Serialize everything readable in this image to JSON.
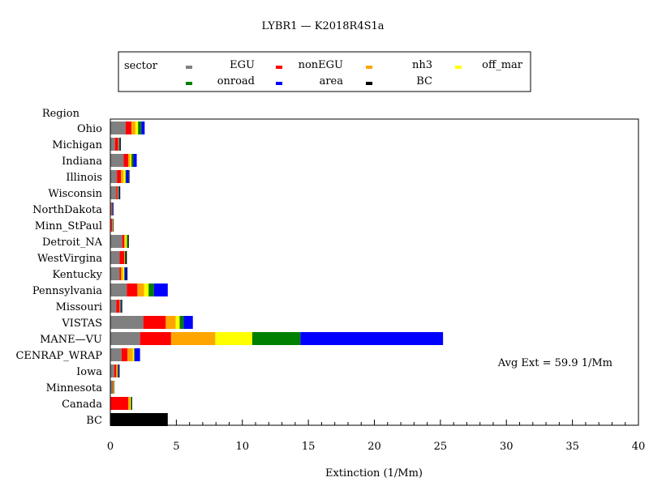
{
  "chart_data": {
    "type": "bar",
    "orientation": "horizontal",
    "stacked": true,
    "title": "LYBR1 — K2018R4S1a",
    "xlabel": "Extinction (1/Mm)",
    "ylabel": "Region",
    "xlim": [
      0,
      40
    ],
    "xticks": [
      0,
      5,
      10,
      15,
      20,
      25,
      30,
      35,
      40
    ],
    "legend_title": "sector",
    "annotation": "Avg Ext =  59.9 1/Mm",
    "categories": [
      "Ohio",
      "Michigan",
      "Indiana",
      "Illinois",
      "Wisconsin",
      "NorthDakota",
      "Minn_StPaul",
      "Detroit_NA",
      "WestVirgina",
      "Kentucky",
      "Pennsylvania",
      "Missouri",
      "VISTAS",
      "MANE—VU",
      "CENRAP_WRAP",
      "Iowa",
      "Minnesota",
      "Canada",
      "BC"
    ],
    "series": [
      {
        "name": "EGU",
        "color": "#808080",
        "values": [
          1.15,
          0.35,
          1.0,
          0.5,
          0.45,
          0.1,
          0.05,
          0.9,
          0.7,
          0.7,
          1.25,
          0.45,
          2.5,
          2.25,
          0.85,
          0.3,
          0.15,
          0.0,
          0.0
        ]
      },
      {
        "name": "nonEGU",
        "color": "#ff0000",
        "values": [
          0.45,
          0.25,
          0.35,
          0.3,
          0.1,
          0.05,
          0.08,
          0.15,
          0.35,
          0.1,
          0.8,
          0.25,
          1.7,
          2.35,
          0.45,
          0.15,
          0.05,
          1.35,
          0.0
        ]
      },
      {
        "name": "nh3",
        "color": "#ffa500",
        "values": [
          0.3,
          0.05,
          0.15,
          0.2,
          0.05,
          0.0,
          0.05,
          0.1,
          0.05,
          0.15,
          0.5,
          0.05,
          0.75,
          3.35,
          0.4,
          0.1,
          0.05,
          0.15,
          0.0
        ]
      },
      {
        "name": "off_mar",
        "color": "#ffff00",
        "values": [
          0.2,
          0.0,
          0.1,
          0.15,
          0.0,
          0.0,
          0.0,
          0.1,
          0.0,
          0.1,
          0.35,
          0.0,
          0.3,
          2.8,
          0.1,
          0.0,
          0.0,
          0.05,
          0.0
        ]
      },
      {
        "name": "onroad",
        "color": "#008000",
        "values": [
          0.25,
          0.05,
          0.15,
          0.05,
          0.05,
          0.05,
          0.0,
          0.1,
          0.05,
          0.05,
          0.4,
          0.05,
          0.3,
          3.65,
          0.05,
          0.05,
          0.05,
          0.05,
          0.0
        ]
      },
      {
        "name": "area",
        "color": "#0000ff",
        "values": [
          0.25,
          0.05,
          0.25,
          0.2,
          0.05,
          0.05,
          0.0,
          0.0,
          0.0,
          0.15,
          1.05,
          0.05,
          0.7,
          10.8,
          0.4,
          0.05,
          0.0,
          0.0,
          0.0
        ]
      },
      {
        "name": "BC",
        "color": "#000000",
        "values": [
          0.0,
          0.05,
          0.0,
          0.05,
          0.05,
          0.0,
          0.05,
          0.05,
          0.1,
          0.05,
          0.0,
          0.05,
          0.0,
          0.0,
          0.0,
          0.05,
          0.0,
          0.05,
          4.35
        ]
      }
    ]
  }
}
